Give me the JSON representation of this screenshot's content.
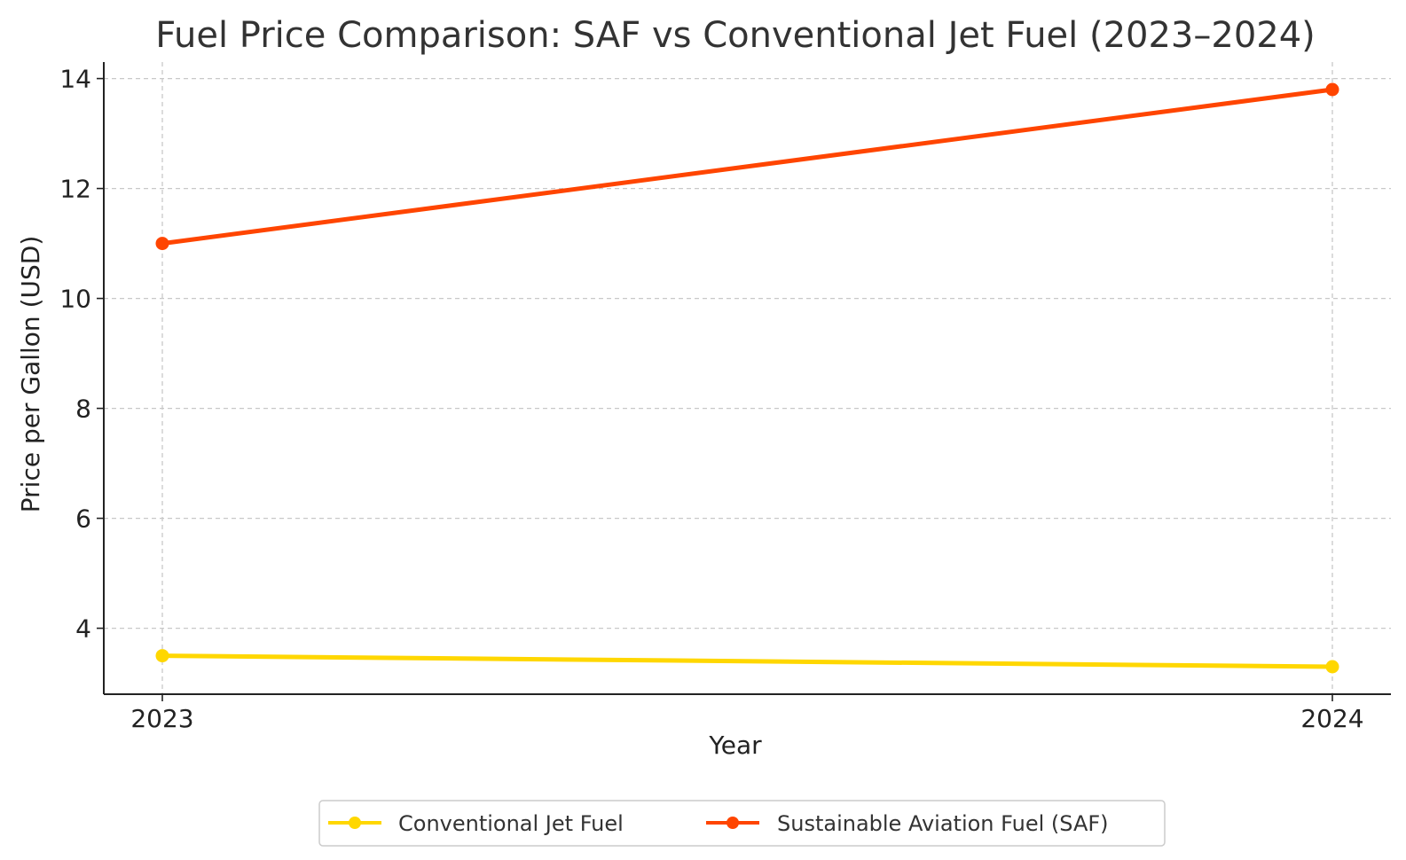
{
  "chart_data": {
    "type": "line",
    "title": "Fuel Price Comparison: SAF vs Conventional Jet Fuel (2023–2024)",
    "xlabel": "Year",
    "ylabel": "Price per Gallon (USD)",
    "categories": [
      "2023",
      "2024"
    ],
    "yticks": [
      4,
      6,
      8,
      10,
      12,
      14
    ],
    "ylim": [
      2.8,
      14.3
    ],
    "grid": true,
    "legend_position": "bottom-center",
    "series": [
      {
        "name": "Conventional Jet Fuel",
        "color": "#FFD700",
        "values": [
          3.5,
          3.3
        ]
      },
      {
        "name": "Sustainable Aviation Fuel (SAF)",
        "color": "#FF4500",
        "values": [
          11.0,
          13.8
        ]
      }
    ]
  }
}
